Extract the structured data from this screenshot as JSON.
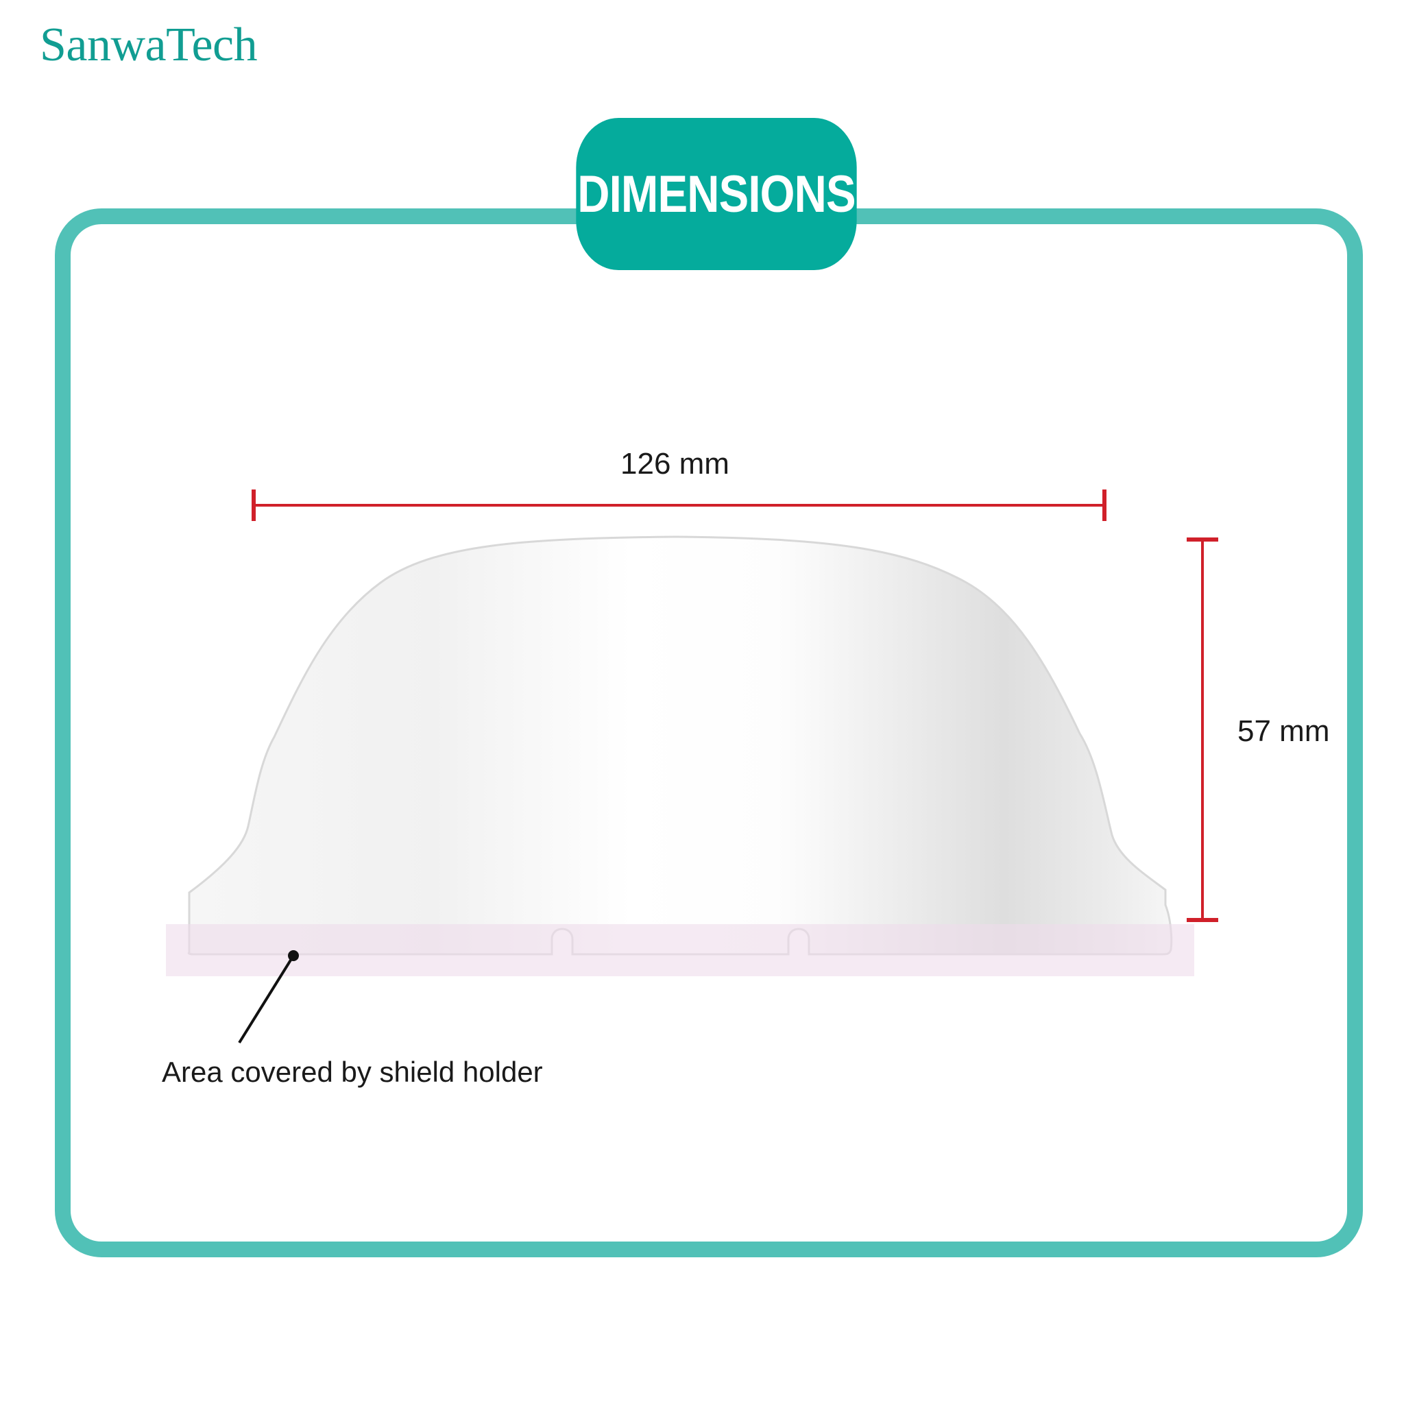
{
  "brand": {
    "name": "SanwaTech",
    "color": "#119d92"
  },
  "header": {
    "title": "DIMENSIONS",
    "badge_color": "#05ab9c",
    "frame_color": "#51c1b7"
  },
  "dimensions": {
    "width_label": "126 mm",
    "height_label": "57 mm",
    "line_color": "#d0202a"
  },
  "callout": {
    "text": "Area covered by shield holder",
    "highlight_color": "#f3e4ef"
  }
}
